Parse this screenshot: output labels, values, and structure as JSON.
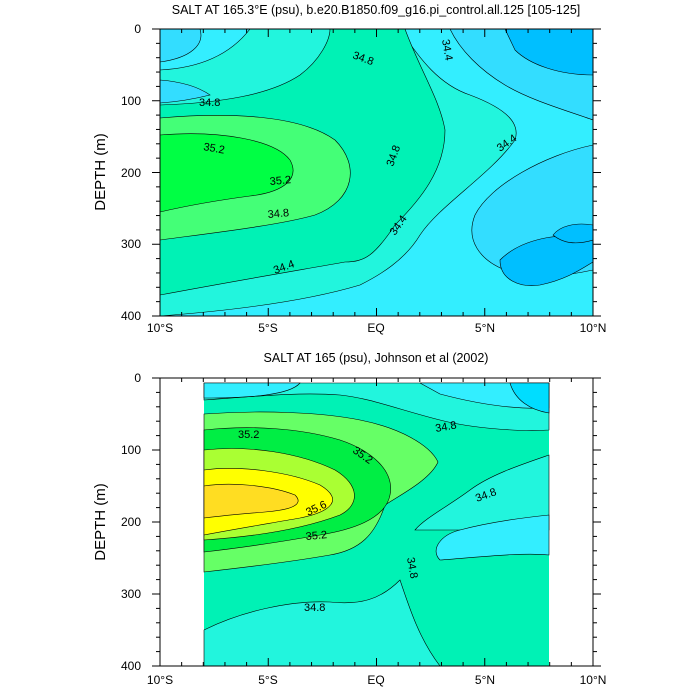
{
  "chart_data": [
    {
      "type": "heatmap",
      "title": "SALT AT 165.3°E (psu), b.e20.B1850.f09_g16.pi_control.all.125 [105-125]",
      "ylabel": "DEPTH (m)",
      "x_ticks": [
        "10°S",
        "5°S",
        "EQ",
        "5°N",
        "10°N"
      ],
      "y_ticks": [
        "0",
        "100",
        "200",
        "300",
        "400"
      ],
      "xlim": [
        -10,
        10
      ],
      "ylim": [
        400,
        0
      ],
      "contour_labels": [
        "34.4",
        "34.8",
        "34.8",
        "35.2",
        "35.2",
        "34.8",
        "34.8",
        "34.4",
        "34.4",
        "34.4"
      ],
      "colors": {
        "lt34.2": "#00bfff",
        "34.2-34.4": "#33ddff",
        "34.4-34.6": "#33eeff",
        "34.6-34.8": "#22f5dd",
        "34.8-35.0": "#00f2b5",
        "35.0-35.2": "#44ff77",
        "gt35.2": "#00ff44"
      }
    },
    {
      "type": "heatmap",
      "title": "SALT AT 165 (psu), Johnson et al (2002)",
      "ylabel": "DEPTH (m)",
      "x_ticks": [
        "10°S",
        "5°S",
        "EQ",
        "5°N",
        "10°N"
      ],
      "y_ticks": [
        "0",
        "100",
        "200",
        "300",
        "400"
      ],
      "xlim": [
        -10,
        10
      ],
      "ylim": [
        400,
        0
      ],
      "contour_labels": [
        "35.2",
        "35.2",
        "34.8",
        "35.6",
        "35.2",
        "34.8",
        "34.8",
        "34.8"
      ],
      "colors": {
        "lt34.4": "#00ddff",
        "34.4-34.6": "#33eeff",
        "34.6-34.8": "#22f5dd",
        "34.8-35.0": "#00f2b5",
        "35.0-35.2": "#66ff66",
        "35.2-35.4": "#00ee44",
        "35.4-35.6": "#aaff33",
        "35.6-35.8": "#ffff00",
        "gt35.8": "#ffdd22"
      }
    }
  ]
}
